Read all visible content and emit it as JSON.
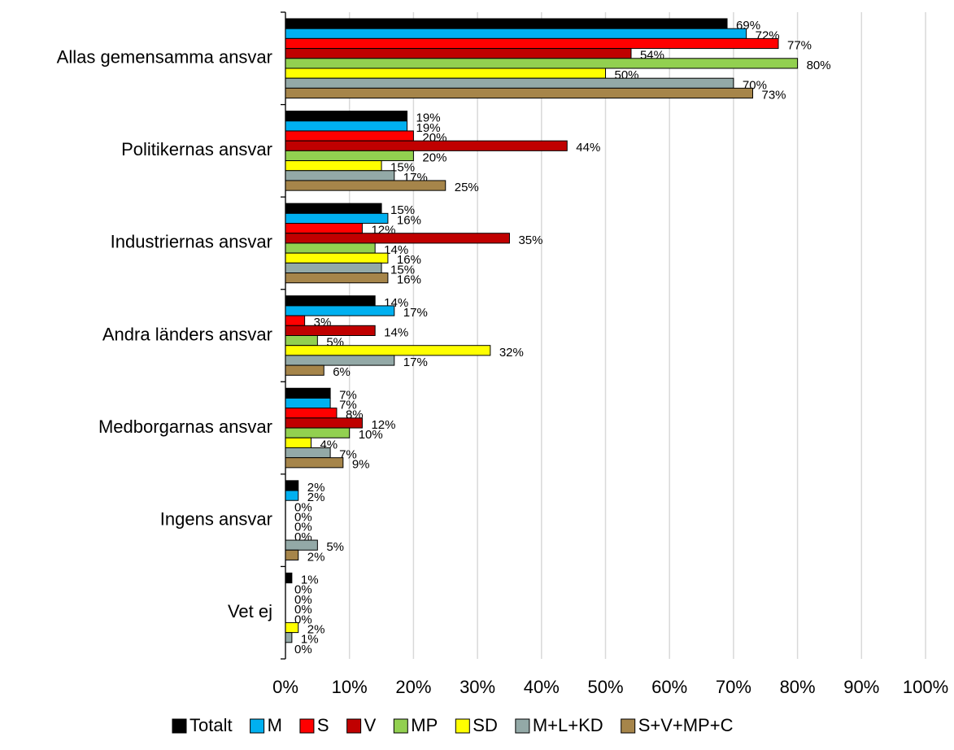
{
  "chart_data": {
    "type": "bar",
    "orientation": "horizontal",
    "categories": [
      "Allas gemensamma ansvar",
      "Politikernas ansvar",
      "Industriernas ansvar",
      "Andra länders ansvar",
      "Medborgarnas ansvar",
      "Ingens ansvar",
      "Vet ej"
    ],
    "series": [
      {
        "name": "Totalt",
        "color": "#000000",
        "values": [
          69,
          19,
          15,
          14,
          7,
          2,
          1
        ],
        "value_labels": [
          "69%",
          "19%",
          "15%",
          "14%",
          "7%",
          "2%",
          "1%"
        ]
      },
      {
        "name": "M",
        "color": "#00b0f0",
        "values": [
          72,
          19,
          16,
          17,
          7,
          2,
          0
        ],
        "value_labels": [
          "72%",
          "19%",
          "16%",
          "17%",
          "7%",
          "2%",
          "0%"
        ]
      },
      {
        "name": "S",
        "color": "#ff0000",
        "values": [
          77,
          20,
          12,
          3,
          8,
          0,
          0
        ],
        "value_labels": [
          "77%",
          "20%",
          "12%",
          "3%",
          "8%",
          "0%",
          "0%"
        ]
      },
      {
        "name": "V",
        "color": "#c00000",
        "values": [
          54,
          44,
          35,
          14,
          12,
          0,
          0
        ],
        "value_labels": [
          "54%",
          "44%",
          "35%",
          "14%",
          "12%",
          "0%",
          "0%"
        ]
      },
      {
        "name": "MP",
        "color": "#92d050",
        "values": [
          80,
          20,
          14,
          5,
          10,
          0,
          0
        ],
        "value_labels": [
          "80%",
          "20%",
          "14%",
          "5%",
          "10%",
          "0%",
          "0%"
        ]
      },
      {
        "name": "SD",
        "color": "#ffff00",
        "values": [
          50,
          15,
          16,
          32,
          4,
          0,
          2
        ],
        "value_labels": [
          "50%",
          "15%",
          "16%",
          "32%",
          "4%",
          "0%",
          "2%"
        ]
      },
      {
        "name": "M+L+KD",
        "color": "#93a9a7",
        "values": [
          70,
          17,
          15,
          17,
          7,
          5,
          1
        ],
        "value_labels": [
          "70%",
          "17%",
          "15%",
          "17%",
          "7%",
          "5%",
          "1%"
        ]
      },
      {
        "name": "S+V+MP+C",
        "color": "#a6854a",
        "values": [
          73,
          25,
          16,
          6,
          9,
          2,
          0
        ],
        "value_labels": [
          "73%",
          "25%",
          "16%",
          "6%",
          "9%",
          "2%",
          "0%"
        ]
      }
    ],
    "xlim": [
      0,
      100
    ],
    "xticks": [
      {
        "value": 0,
        "label": "0%"
      },
      {
        "value": 10,
        "label": "10%"
      },
      {
        "value": 20,
        "label": "20%"
      },
      {
        "value": 30,
        "label": "30%"
      },
      {
        "value": 40,
        "label": "40%"
      },
      {
        "value": 50,
        "label": "50%"
      },
      {
        "value": 60,
        "label": "60%"
      },
      {
        "value": 70,
        "label": "70%"
      },
      {
        "value": 80,
        "label": "80%"
      },
      {
        "value": 90,
        "label": "90%"
      },
      {
        "value": 100,
        "label": "100%"
      }
    ],
    "grid": true,
    "legend": "bottom"
  }
}
